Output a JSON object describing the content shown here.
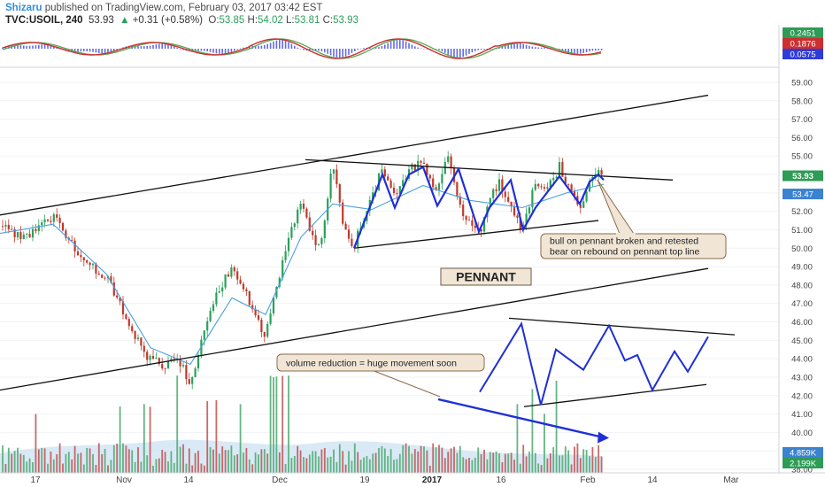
{
  "header": {
    "author": "Shizaru",
    "published_text": " published on TradingView.com, February 03, 2017 03:42 EST"
  },
  "ticker": {
    "symbol": "TVC:USOIL, 240",
    "last": "53.93",
    "change_icon": "up-triangle-icon",
    "change": "+0.31 (+0.58%)",
    "o_label": "O:",
    "o_value": "53.85",
    "h_label": "H:",
    "h_value": "54.02",
    "l_label": "L:",
    "l_value": "53.81",
    "c_label": "C:",
    "c_value": "53.93"
  },
  "colors": {
    "up": "#2aa05a",
    "down": "#c0392b",
    "ma": "#4a9fe0",
    "pattern": "#1f2fd6",
    "last_price_tag": "#2e9b56",
    "ma_tag": "#3b82d0",
    "callout_bg": "#f1e6d6",
    "callout_border": "#8b6b4a"
  },
  "oscillator": {
    "tags": [
      "0.2451",
      "0.1876",
      "0.0575"
    ],
    "tag_colors": [
      "#2e9b56",
      "#cc2f2f",
      "#2f3bd8"
    ]
  },
  "price_axis": {
    "ticks": [
      "59.00",
      "58.00",
      "57.00",
      "56.00",
      "55.00",
      "54.00",
      "53.00",
      "52.00",
      "51.00",
      "50.00",
      "49.00",
      "48.00",
      "47.00",
      "46.00",
      "45.00",
      "44.00",
      "43.00",
      "42.00",
      "41.00",
      "40.00",
      "39.00",
      "38.00"
    ],
    "last_price_tag": "53.93",
    "ma_tag": "53.47",
    "volume_tags": [
      "4.859K",
      "2.199K"
    ]
  },
  "time_axis": {
    "labels": [
      "17",
      "Nov",
      "14",
      "Dec",
      "19",
      "2017",
      "16",
      "Feb",
      "14",
      "Mar"
    ]
  },
  "annotations": {
    "pennant_label": "PENNANT",
    "callout_top_line1": "bull on pennant broken and retested",
    "callout_top_line2": "bear on rebound on pennant top line",
    "callout_bottom": "volume reduction = huge movement soon"
  },
  "chart_data": {
    "type": "candlestick",
    "title": "",
    "ylabel": "",
    "ylim": [
      37.6,
      59.6
    ],
    "price_path": [
      [
        0,
        51.2
      ],
      [
        30,
        50.5
      ],
      [
        60,
        51.8
      ],
      [
        90,
        49.5
      ],
      [
        120,
        48.4
      ],
      [
        145,
        46.0
      ],
      [
        165,
        44.0
      ],
      [
        185,
        43.6
      ],
      [
        200,
        44.2
      ],
      [
        215,
        42.6
      ],
      [
        230,
        45.3
      ],
      [
        245,
        47.4
      ],
      [
        262,
        49.0
      ],
      [
        280,
        47.3
      ],
      [
        298,
        45.2
      ],
      [
        312,
        47.6
      ],
      [
        325,
        50.3
      ],
      [
        340,
        52.4
      ],
      [
        352,
        50.6
      ],
      [
        362,
        50.2
      ],
      [
        376,
        54.6
      ],
      [
        388,
        51.2
      ],
      [
        400,
        50.1
      ],
      [
        415,
        52.2
      ],
      [
        432,
        54.3
      ],
      [
        446,
        52.6
      ],
      [
        462,
        54.3
      ],
      [
        478,
        54.7
      ],
      [
        494,
        52.9
      ],
      [
        506,
        55.0
      ],
      [
        518,
        52.2
      ],
      [
        530,
        51.6
      ],
      [
        541,
        50.7
      ],
      [
        553,
        52.8
      ],
      [
        565,
        53.6
      ],
      [
        578,
        52.2
      ],
      [
        590,
        50.8
      ],
      [
        604,
        53.4
      ],
      [
        618,
        53.2
      ],
      [
        632,
        54.4
      ],
      [
        646,
        53.0
      ],
      [
        656,
        52.3
      ],
      [
        666,
        53.6
      ],
      [
        676,
        54.0
      ],
      [
        682,
        53.9
      ]
    ],
    "moving_average": [
      [
        0,
        50.8
      ],
      [
        60,
        51.3
      ],
      [
        120,
        48.6
      ],
      [
        170,
        44.6
      ],
      [
        215,
        43.7
      ],
      [
        262,
        47.3
      ],
      [
        300,
        46.4
      ],
      [
        340,
        50.6
      ],
      [
        376,
        52.4
      ],
      [
        420,
        52.1
      ],
      [
        478,
        53.4
      ],
      [
        530,
        52.6
      ],
      [
        590,
        52.2
      ],
      [
        640,
        53.0
      ],
      [
        682,
        53.47
      ]
    ],
    "trendlines": [
      {
        "name": "channel-upper",
        "points": [
          [
            0,
            51.8
          ],
          [
            800,
            58.3
          ]
        ]
      },
      {
        "name": "channel-lower",
        "points": [
          [
            0,
            42.3
          ],
          [
            800,
            48.9
          ]
        ]
      },
      {
        "name": "pennant-top",
        "points": [
          [
            345,
            54.8
          ],
          [
            760,
            53.7
          ]
        ]
      },
      {
        "name": "pennant-bottom",
        "points": [
          [
            400,
            50.0
          ],
          [
            676,
            51.5
          ]
        ]
      },
      {
        "name": "schematic-top",
        "points": [
          [
            575,
            46.2
          ],
          [
            830,
            45.3
          ]
        ]
      },
      {
        "name": "schematic-bottom",
        "points": [
          [
            592,
            41.4
          ],
          [
            798,
            42.6
          ]
        ]
      }
    ],
    "pennant_zigzag": [
      [
        400,
        50.0
      ],
      [
        432,
        54.0
      ],
      [
        446,
        52.2
      ],
      [
        462,
        54.0
      ],
      [
        478,
        54.4
      ],
      [
        494,
        52.3
      ],
      [
        518,
        54.3
      ],
      [
        541,
        50.9
      ],
      [
        553,
        52.2
      ],
      [
        577,
        53.7
      ],
      [
        591,
        51.0
      ],
      [
        605,
        52.2
      ],
      [
        632,
        53.9
      ],
      [
        655,
        52.4
      ],
      [
        666,
        53.6
      ],
      [
        676,
        54.0
      ],
      [
        682,
        53.7
      ]
    ],
    "schematic_zigzag": [
      [
        542,
        42.2
      ],
      [
        589,
        45.9
      ],
      [
        611,
        41.5
      ],
      [
        628,
        44.5
      ],
      [
        659,
        43.4
      ],
      [
        688,
        45.8
      ],
      [
        706,
        43.9
      ],
      [
        720,
        44.2
      ],
      [
        737,
        42.3
      ],
      [
        762,
        44.4
      ],
      [
        777,
        43.3
      ],
      [
        800,
        45.2
      ]
    ],
    "volume_trend_arrow": [
      [
        495,
        41.8
      ],
      [
        688,
        39.7
      ]
    ]
  }
}
